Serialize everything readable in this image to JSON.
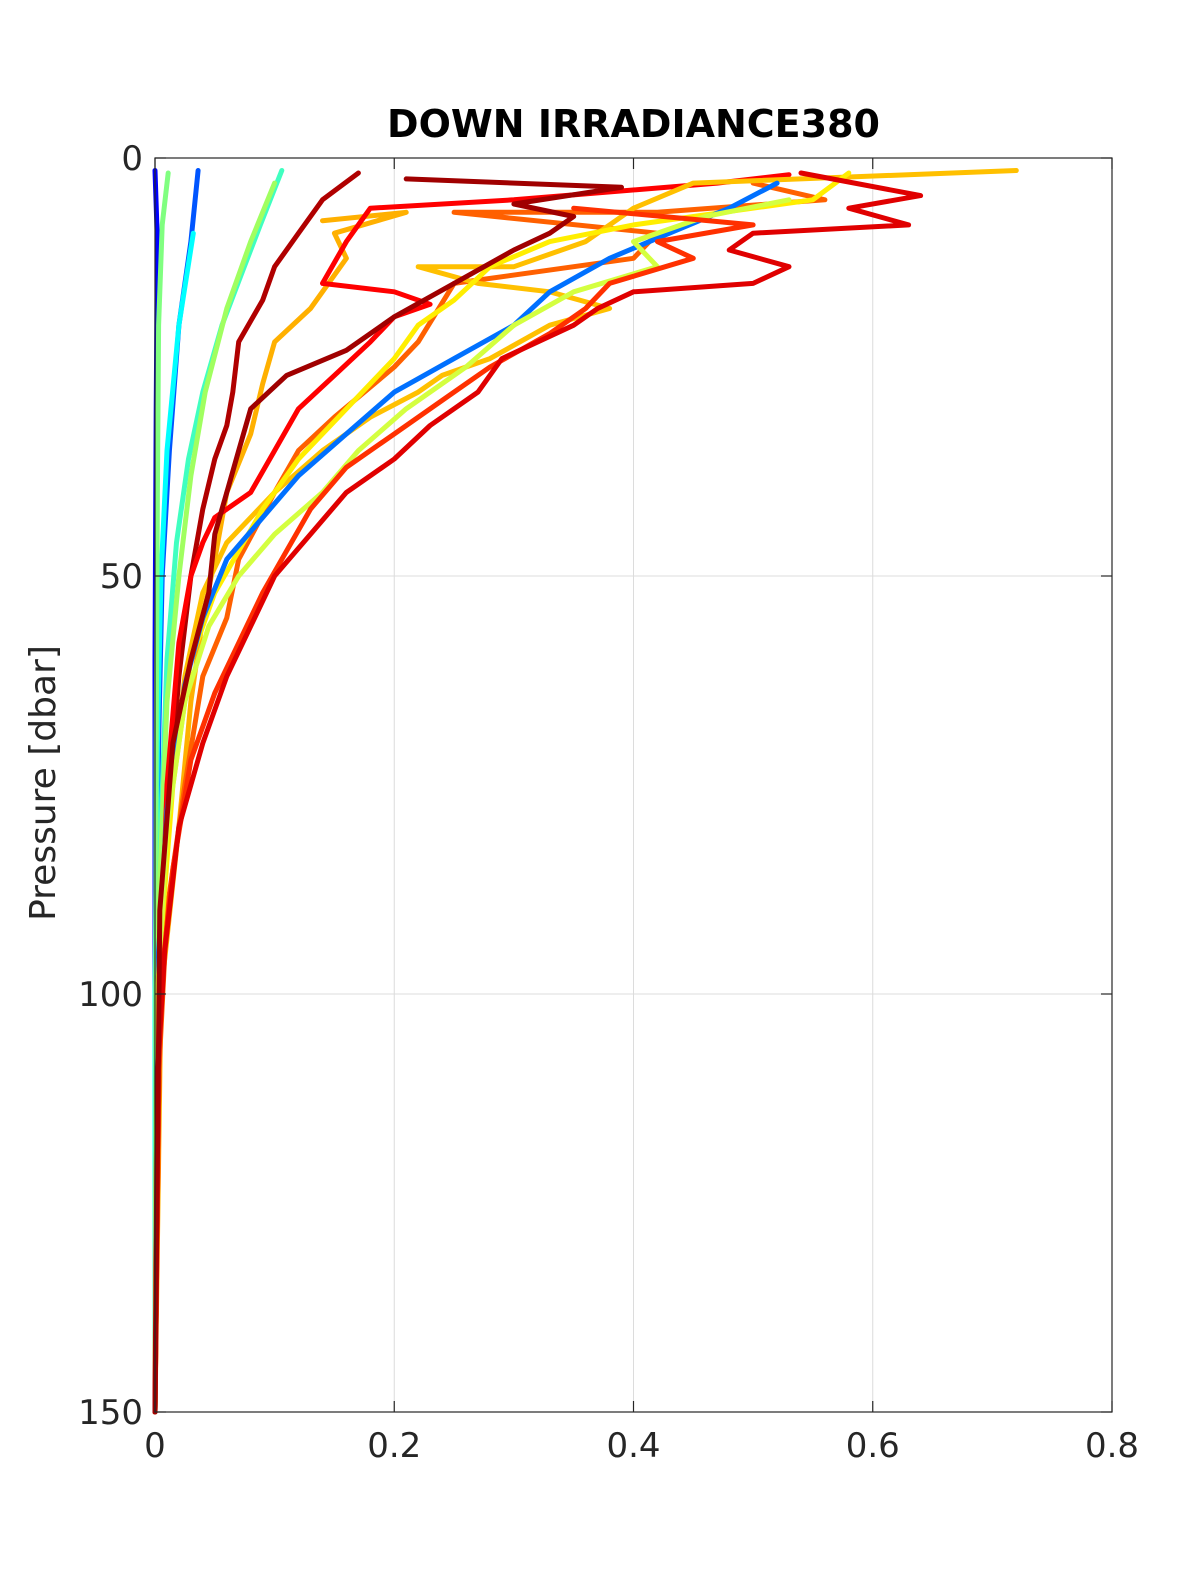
{
  "chart_data": {
    "type": "line",
    "title": "DOWN IRRADIANCE380",
    "xlabel": "",
    "ylabel": "Pressure [dbar]",
    "xlim": [
      0,
      0.8
    ],
    "ylim": [
      0,
      150
    ],
    "y_reversed": true,
    "grid": true,
    "x_ticks": [
      0,
      0.2,
      0.4,
      0.6,
      0.8
    ],
    "x_tick_labels": [
      "0",
      "0.2",
      "0.4",
      "0.6",
      "0.8"
    ],
    "y_ticks": [
      0,
      50,
      100,
      150
    ],
    "y_tick_labels": [
      "0",
      "50",
      "100",
      "150"
    ],
    "series": [
      {
        "color": "#0000ff",
        "points": [
          [
            0.0,
            1.5
          ],
          [
            0.002,
            10
          ],
          [
            0.001,
            30
          ],
          [
            0.0,
            60
          ],
          [
            0.0,
            150
          ]
        ]
      },
      {
        "color": "#0055ff",
        "points": [
          [
            0.036,
            1.5
          ],
          [
            0.03,
            10
          ],
          [
            0.02,
            20
          ],
          [
            0.012,
            35
          ],
          [
            0.006,
            50
          ],
          [
            0.003,
            70
          ],
          [
            0.001,
            100
          ],
          [
            0.0,
            150
          ]
        ]
      },
      {
        "color": "#00ffff",
        "points": [
          [
            0.032,
            9
          ],
          [
            0.02,
            20
          ],
          [
            0.01,
            35
          ],
          [
            0.005,
            50
          ],
          [
            0.002,
            70
          ],
          [
            0.0,
            100
          ],
          [
            0.0,
            150
          ]
        ]
      },
      {
        "color": "#80ff80",
        "points": [
          [
            0.011,
            1.8
          ],
          [
            0.006,
            8
          ],
          [
            0.003,
            20
          ],
          [
            0.002,
            40
          ],
          [
            0.001,
            70
          ],
          [
            0.0,
            150
          ]
        ]
      },
      {
        "color": "#40ffc0",
        "points": [
          [
            0.106,
            1.5
          ],
          [
            0.088,
            8
          ],
          [
            0.072,
            14
          ],
          [
            0.056,
            20
          ],
          [
            0.04,
            28
          ],
          [
            0.028,
            36
          ],
          [
            0.018,
            46
          ],
          [
            0.01,
            60
          ],
          [
            0.005,
            80
          ],
          [
            0.001,
            110
          ],
          [
            0.0,
            150
          ]
        ]
      },
      {
        "color": "#a0ff60",
        "points": [
          [
            0.1,
            3
          ],
          [
            0.08,
            10
          ],
          [
            0.06,
            18
          ],
          [
            0.042,
            28
          ],
          [
            0.03,
            38
          ],
          [
            0.02,
            50
          ],
          [
            0.01,
            65
          ],
          [
            0.003,
            90
          ],
          [
            0.0,
            150
          ]
        ]
      },
      {
        "color": "#b00000",
        "points": [
          [
            0.17,
            1.8
          ],
          [
            0.14,
            5
          ],
          [
            0.12,
            9
          ],
          [
            0.1,
            13
          ],
          [
            0.09,
            17
          ],
          [
            0.07,
            22
          ],
          [
            0.065,
            28
          ],
          [
            0.06,
            32
          ],
          [
            0.05,
            36
          ],
          [
            0.04,
            42
          ],
          [
            0.03,
            50
          ],
          [
            0.02,
            62
          ],
          [
            0.01,
            80
          ],
          [
            0.002,
            100
          ],
          [
            0.0,
            150
          ]
        ]
      },
      {
        "color": "#ffb000",
        "points": [
          [
            0.14,
            7.5
          ],
          [
            0.21,
            6.5
          ],
          [
            0.15,
            9
          ],
          [
            0.16,
            12
          ],
          [
            0.13,
            18
          ],
          [
            0.1,
            22
          ],
          [
            0.09,
            27
          ],
          [
            0.08,
            33
          ],
          [
            0.06,
            40
          ],
          [
            0.05,
            48
          ],
          [
            0.04,
            55
          ],
          [
            0.03,
            65
          ],
          [
            0.02,
            80
          ],
          [
            0.005,
            100
          ],
          [
            0.0,
            150
          ]
        ]
      },
      {
        "color": "#ff0000",
        "points": [
          [
            0.53,
            2
          ],
          [
            0.47,
            3
          ],
          [
            0.3,
            5
          ],
          [
            0.18,
            6
          ],
          [
            0.16,
            10
          ],
          [
            0.14,
            15
          ],
          [
            0.2,
            16
          ],
          [
            0.23,
            17.5
          ],
          [
            0.2,
            19
          ],
          [
            0.18,
            22
          ],
          [
            0.15,
            26
          ],
          [
            0.12,
            30
          ],
          [
            0.1,
            35
          ],
          [
            0.08,
            40
          ],
          [
            0.05,
            43
          ],
          [
            0.04,
            46
          ],
          [
            0.03,
            50
          ],
          [
            0.02,
            58
          ],
          [
            0.01,
            75
          ],
          [
            0.004,
            100
          ],
          [
            0.0,
            150
          ]
        ]
      },
      {
        "color": "#ff6000",
        "points": [
          [
            0.5,
            3
          ],
          [
            0.56,
            5
          ],
          [
            0.42,
            6.5
          ],
          [
            0.25,
            6.5
          ],
          [
            0.42,
            9
          ],
          [
            0.4,
            12
          ],
          [
            0.25,
            15
          ],
          [
            0.22,
            22
          ],
          [
            0.2,
            25
          ],
          [
            0.15,
            31
          ],
          [
            0.12,
            35
          ],
          [
            0.1,
            40
          ],
          [
            0.07,
            48
          ],
          [
            0.06,
            55
          ],
          [
            0.04,
            62
          ],
          [
            0.025,
            75
          ],
          [
            0.01,
            90
          ],
          [
            0.003,
            110
          ],
          [
            0.0,
            150
          ]
        ]
      },
      {
        "color": "#ffc000",
        "points": [
          [
            0.72,
            1.5
          ],
          [
            0.45,
            3
          ],
          [
            0.4,
            6
          ],
          [
            0.38,
            8
          ],
          [
            0.36,
            10
          ],
          [
            0.3,
            13
          ],
          [
            0.22,
            13
          ],
          [
            0.27,
            15
          ],
          [
            0.33,
            16
          ],
          [
            0.38,
            18
          ],
          [
            0.33,
            20
          ],
          [
            0.28,
            24
          ],
          [
            0.24,
            26
          ],
          [
            0.22,
            28
          ],
          [
            0.18,
            31
          ],
          [
            0.14,
            35
          ],
          [
            0.1,
            40
          ],
          [
            0.06,
            46
          ],
          [
            0.04,
            52
          ],
          [
            0.025,
            62
          ],
          [
            0.01,
            80
          ],
          [
            0.002,
            100
          ],
          [
            0.0,
            150
          ]
        ]
      },
      {
        "color": "#ffee00",
        "points": [
          [
            0.58,
            1.8
          ],
          [
            0.55,
            5
          ],
          [
            0.4,
            8
          ],
          [
            0.33,
            10
          ],
          [
            0.28,
            13
          ],
          [
            0.25,
            17
          ],
          [
            0.22,
            20
          ],
          [
            0.2,
            24
          ],
          [
            0.16,
            30
          ],
          [
            0.12,
            36
          ],
          [
            0.09,
            42
          ],
          [
            0.07,
            47
          ],
          [
            0.05,
            52
          ],
          [
            0.03,
            60
          ],
          [
            0.015,
            75
          ],
          [
            0.004,
            95
          ],
          [
            0.0,
            150
          ]
        ]
      },
      {
        "color": "#0070ff",
        "points": [
          [
            0.52,
            3
          ],
          [
            0.48,
            6
          ],
          [
            0.43,
            9
          ],
          [
            0.38,
            12
          ],
          [
            0.33,
            16
          ],
          [
            0.3,
            20
          ],
          [
            0.25,
            24
          ],
          [
            0.2,
            28
          ],
          [
            0.16,
            33
          ],
          [
            0.12,
            38
          ],
          [
            0.09,
            43
          ],
          [
            0.06,
            48
          ],
          [
            0.04,
            55
          ],
          [
            0.025,
            63
          ],
          [
            0.01,
            78
          ],
          [
            0.003,
            95
          ],
          [
            0.0,
            150
          ]
        ]
      },
      {
        "color": "#d4ff40",
        "points": [
          [
            0.53,
            5
          ],
          [
            0.46,
            7
          ],
          [
            0.4,
            10
          ],
          [
            0.42,
            13
          ],
          [
            0.35,
            16
          ],
          [
            0.3,
            20
          ],
          [
            0.26,
            25
          ],
          [
            0.21,
            30
          ],
          [
            0.17,
            35
          ],
          [
            0.14,
            40
          ],
          [
            0.1,
            45
          ],
          [
            0.07,
            50
          ],
          [
            0.045,
            56
          ],
          [
            0.025,
            65
          ],
          [
            0.01,
            80
          ],
          [
            0.002,
            100
          ],
          [
            0.0,
            150
          ]
        ]
      },
      {
        "color": "#ff3000",
        "points": [
          [
            0.35,
            6
          ],
          [
            0.5,
            8
          ],
          [
            0.42,
            10
          ],
          [
            0.45,
            12
          ],
          [
            0.38,
            15
          ],
          [
            0.36,
            18
          ],
          [
            0.33,
            21
          ],
          [
            0.28,
            25
          ],
          [
            0.24,
            29
          ],
          [
            0.2,
            33
          ],
          [
            0.16,
            37
          ],
          [
            0.13,
            42
          ],
          [
            0.11,
            47
          ],
          [
            0.09,
            52
          ],
          [
            0.07,
            58
          ],
          [
            0.05,
            64
          ],
          [
            0.03,
            72
          ],
          [
            0.015,
            85
          ],
          [
            0.004,
            100
          ],
          [
            0.0,
            150
          ]
        ]
      },
      {
        "color": "#e00000",
        "points": [
          [
            0.54,
            1.8
          ],
          [
            0.64,
            4.5
          ],
          [
            0.58,
            6
          ],
          [
            0.63,
            8
          ],
          [
            0.5,
            9
          ],
          [
            0.48,
            11
          ],
          [
            0.53,
            13
          ],
          [
            0.5,
            15
          ],
          [
            0.4,
            16
          ],
          [
            0.37,
            18
          ],
          [
            0.35,
            20
          ],
          [
            0.29,
            24
          ],
          [
            0.27,
            28
          ],
          [
            0.23,
            32
          ],
          [
            0.2,
            36
          ],
          [
            0.16,
            40
          ],
          [
            0.13,
            45
          ],
          [
            0.1,
            50
          ],
          [
            0.08,
            56
          ],
          [
            0.06,
            62
          ],
          [
            0.04,
            70
          ],
          [
            0.02,
            80
          ],
          [
            0.008,
            95
          ],
          [
            0.002,
            110
          ],
          [
            0.0,
            150
          ]
        ]
      },
      {
        "color": "#a00000",
        "points": [
          [
            0.21,
            2.5
          ],
          [
            0.39,
            3.5
          ],
          [
            0.3,
            5.5
          ],
          [
            0.35,
            7
          ],
          [
            0.33,
            9
          ],
          [
            0.3,
            11
          ],
          [
            0.25,
            15
          ],
          [
            0.2,
            19
          ],
          [
            0.16,
            23
          ],
          [
            0.11,
            26
          ],
          [
            0.08,
            30
          ],
          [
            0.07,
            35
          ],
          [
            0.06,
            40
          ],
          [
            0.05,
            45
          ],
          [
            0.045,
            52
          ],
          [
            0.03,
            60
          ],
          [
            0.015,
            70
          ],
          [
            0.004,
            90
          ],
          [
            0.0,
            150
          ]
        ]
      }
    ]
  }
}
